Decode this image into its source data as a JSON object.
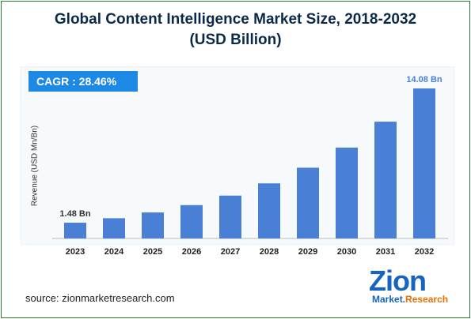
{
  "colors": {
    "bar": "#4a7fd6",
    "accent": "#1e88e5",
    "title": "#0b2a4a",
    "logo_blue": "#1565c0",
    "logo_orange": "#ef6c00"
  },
  "cagr_label": "CAGR :  28.46%",
  "source": "source: zionmarketresearch.com",
  "logo": {
    "word": "Zion",
    "sub_1": "Market.",
    "sub_2": "Research"
  },
  "chart_data": {
    "type": "bar",
    "title": "Global Content Intelligence Market Size, 2018-2032",
    "subtitle": "(USD Billion)",
    "xlabel": "",
    "ylabel": "Revenue (USD Mn/Bn)",
    "categories": [
      "2023",
      "2024",
      "2025",
      "2026",
      "2027",
      "2028",
      "2029",
      "2030",
      "2031",
      "2032"
    ],
    "values": [
      1.48,
      1.9,
      2.44,
      3.13,
      4.02,
      5.17,
      6.64,
      8.53,
      10.96,
      14.08
    ],
    "data_labels": {
      "0": "1.48 Bn",
      "9": "14.08 Bn"
    },
    "ylim": [
      0,
      14.08
    ],
    "grid": false,
    "legend": "none"
  }
}
